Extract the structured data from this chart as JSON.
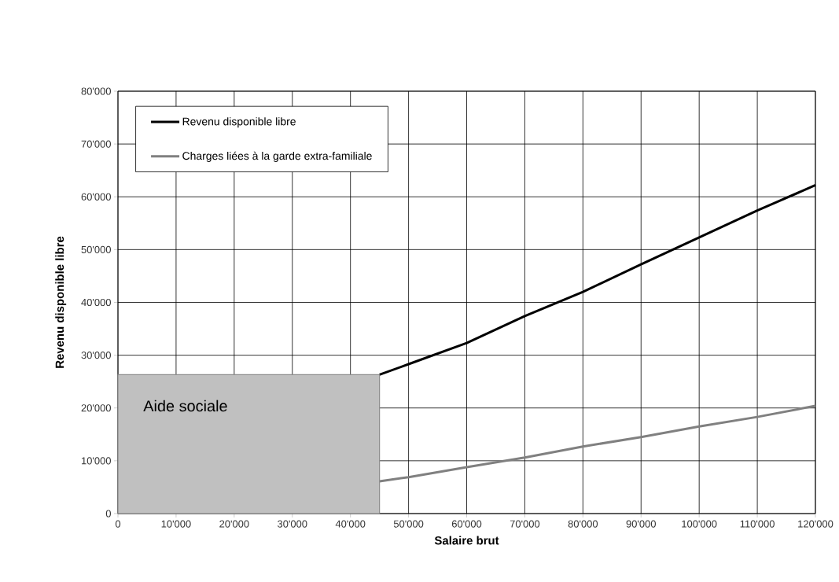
{
  "chart_data": {
    "type": "line",
    "xlabel": "Salaire brut",
    "ylabel": "Revenu disponible libre",
    "series": [
      {
        "name": "Revenu disponible libre",
        "color": "#000000",
        "x": [
          45000,
          50000,
          60000,
          70000,
          80000,
          90000,
          100000,
          110000,
          120000
        ],
        "values": [
          26300,
          28300,
          32300,
          37400,
          42000,
          47200,
          52300,
          57400,
          62200
        ]
      },
      {
        "name": "Charges liées à la garde extra-familiale",
        "color": "#808080",
        "x": [
          45000,
          50000,
          60000,
          70000,
          80000,
          90000,
          100000,
          110000,
          120000
        ],
        "values": [
          6100,
          6900,
          8800,
          10600,
          12700,
          14500,
          16500,
          18300,
          20400
        ]
      }
    ],
    "bands": [
      {
        "axis": "x",
        "from": 0,
        "to": 45000,
        "label": "Aide sociale",
        "color": "#c0c0c0"
      }
    ],
    "xlim": [
      0,
      120000
    ],
    "ylim": [
      0,
      80000
    ],
    "xticks": [
      0,
      {
        "value": 10000,
        "label": "10'000"
      },
      {
        "value": 20000,
        "label": "20'000"
      },
      {
        "value": 30000,
        "label": "30'000"
      },
      {
        "value": 40000,
        "label": "40'000"
      },
      {
        "value": 50000,
        "label": "50'000"
      },
      {
        "value": 60000,
        "label": "60'000"
      },
      {
        "value": 70000,
        "label": "70'000"
      },
      {
        "value": 80000,
        "label": "80'000"
      },
      {
        "value": 90000,
        "label": "90'000"
      },
      {
        "value": 100000,
        "label": "100'000"
      },
      {
        "value": 110000,
        "label": "110'000"
      },
      {
        "value": 120000,
        "label": "120'000"
      }
    ],
    "yticks": [
      0,
      {
        "value": 10000,
        "label": "10'000"
      },
      {
        "value": 20000,
        "label": "20'000"
      },
      {
        "value": 30000,
        "label": "30'000"
      },
      {
        "value": 40000,
        "label": "40'000"
      },
      {
        "value": 50000,
        "label": "50'000"
      },
      {
        "value": 60000,
        "label": "60'000"
      },
      {
        "value": 70000,
        "label": "70'000"
      },
      {
        "value": 80000,
        "label": "80'000"
      }
    ],
    "grid": true,
    "legend": "top left",
    "marker": "none",
    "line_style": "solid"
  }
}
